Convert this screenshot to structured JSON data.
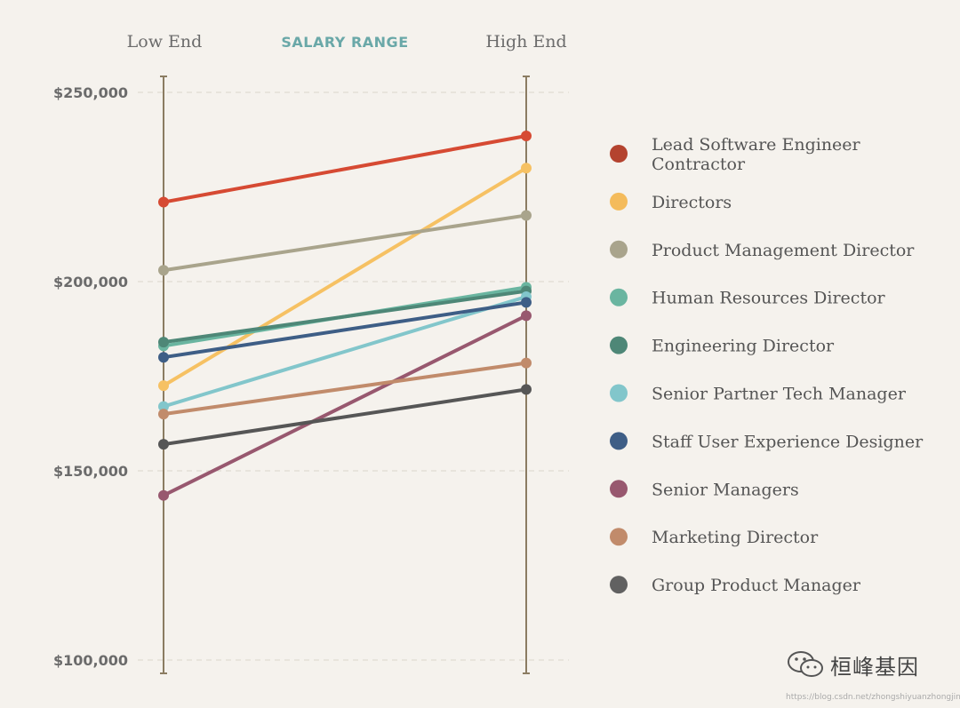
{
  "chart_data": {
    "type": "slope",
    "title": "SALARY RANGE",
    "left_label": "Low End",
    "right_label": "High End",
    "ylim": [
      100000,
      250000
    ],
    "yticks": [
      {
        "value": 250000,
        "label": "$250,000"
      },
      {
        "value": 200000,
        "label": "$200,000"
      },
      {
        "value": 150000,
        "label": "$150,000"
      },
      {
        "value": 100000,
        "label": "$100,000"
      }
    ],
    "series": [
      {
        "name": "Lead Software Engineer\nContractor",
        "low": 221000,
        "high": 238500,
        "color": "#d64a33",
        "legend_color": "#b4432f"
      },
      {
        "name": "Directors",
        "low": 172500,
        "high": 230000,
        "color": "#f6c163",
        "legend_color": "#f4bb5b"
      },
      {
        "name": "Product Management Director",
        "low": 203000,
        "high": 217500,
        "color": "#a9a48c",
        "legend_color": "#a9a48c"
      },
      {
        "name": "Human Resources Director",
        "low": 183000,
        "high": 198500,
        "color": "#6ab5a0",
        "legend_color": "#6ab5a0"
      },
      {
        "name": "Engineering Director",
        "low": 184000,
        "high": 197500,
        "color": "#4e8777",
        "legend_color": "#4e8777"
      },
      {
        "name": "Senior Partner Tech Manager",
        "low": 167000,
        "high": 196000,
        "color": "#82c6cb",
        "legend_color": "#82c6cb"
      },
      {
        "name": "Staff User Experience Designer",
        "low": 180000,
        "high": 194500,
        "color": "#3e5e86",
        "legend_color": "#3e5e86"
      },
      {
        "name": "Senior Managers",
        "low": 143500,
        "high": 191000,
        "color": "#98586f",
        "legend_color": "#98586f"
      },
      {
        "name": "Marketing Director",
        "low": 165000,
        "high": 178500,
        "color": "#c18b6b",
        "legend_color": "#c18b6b"
      },
      {
        "name": "Group Product Manager",
        "low": 157000,
        "high": 171500,
        "color": "#565656",
        "legend_color": "#616161"
      }
    ]
  },
  "watermark": {
    "text": "桓峰基因",
    "icon": "wechat-icon"
  },
  "source_url": "https://blog.csdn.net/zhongshiyuanzhongjing"
}
